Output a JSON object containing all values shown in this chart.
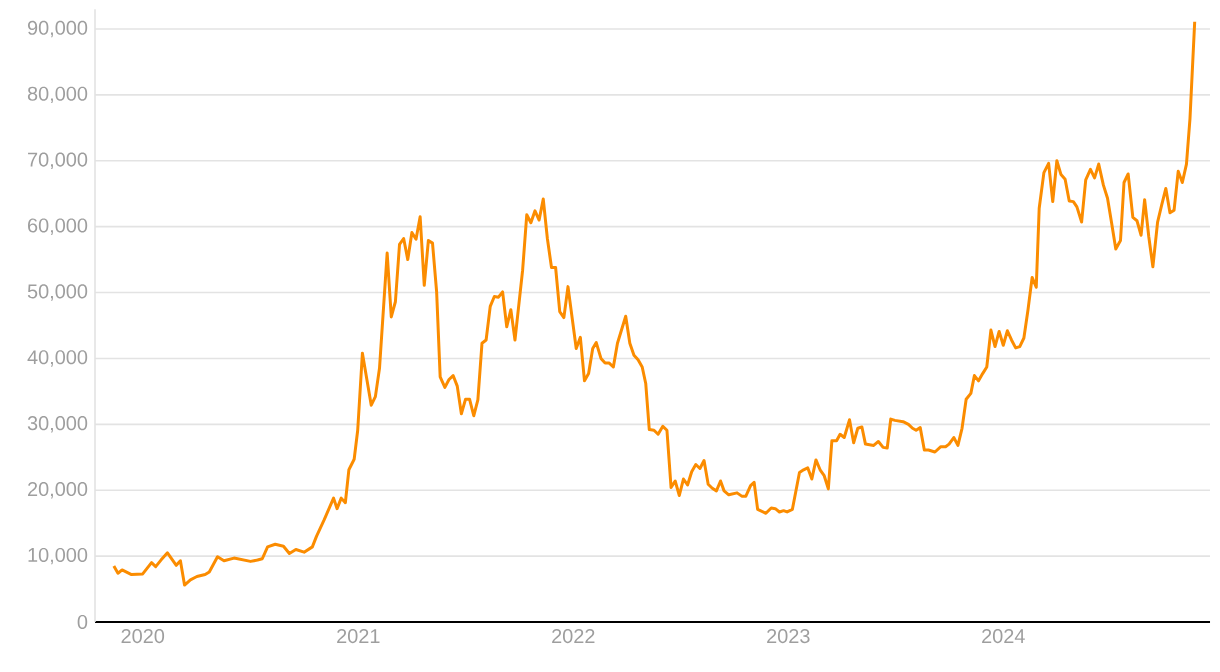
{
  "chart_data": {
    "type": "line",
    "color": "#fb8c00",
    "grid": "y",
    "xlim": [
      "2019-10-12",
      "2024-12-17"
    ],
    "xticks": [
      {
        "value": "2020-01-01",
        "label": "2020"
      },
      {
        "value": "2021-01-01",
        "label": "2021"
      },
      {
        "value": "2022-01-01",
        "label": "2022"
      },
      {
        "value": "2023-01-01",
        "label": "2023"
      },
      {
        "value": "2024-01-01",
        "label": "2024"
      }
    ],
    "ylim": [
      0,
      93000
    ],
    "yticks": [
      0,
      {
        "value": 10000,
        "label": "10,000"
      },
      {
        "value": 20000,
        "label": "20,000"
      },
      {
        "value": 30000,
        "label": "30,000"
      },
      {
        "value": 40000,
        "label": "40,000"
      },
      {
        "value": 50000,
        "label": "50,000"
      },
      {
        "value": 60000,
        "label": "60,000"
      },
      {
        "value": 70000,
        "label": "70,000"
      },
      {
        "value": 80000,
        "label": "80,000"
      },
      {
        "value": 90000,
        "label": "90,000"
      }
    ],
    "x": [
      "2019-11-13",
      "2019-11-20",
      "2019-11-27",
      "2019-12-13",
      "2020-01-01",
      "2020-01-16",
      "2020-01-23",
      "2020-02-01",
      "2020-02-12",
      "2020-02-27",
      "2020-03-05",
      "2020-03-12",
      "2020-03-22",
      "2020-04-02",
      "2020-04-16",
      "2020-04-23",
      "2020-05-07",
      "2020-05-18",
      "2020-06-04",
      "2020-07-02",
      "2020-07-14",
      "2020-07-22",
      "2020-07-31",
      "2020-08-13",
      "2020-08-27",
      "2020-09-06",
      "2020-09-17",
      "2020-10-01",
      "2020-10-15",
      "2020-10-22",
      "2020-11-04",
      "2020-11-20",
      "2020-11-26",
      "2020-12-03",
      "2020-12-10",
      "2020-12-16",
      "2020-12-25",
      "2020-12-31",
      "2021-01-08",
      "2021-01-23",
      "2021-01-30",
      "2021-02-06",
      "2021-02-19",
      "2021-02-26",
      "2021-03-05",
      "2021-03-12",
      "2021-03-19",
      "2021-03-26",
      "2021-04-02",
      "2021-04-09",
      "2021-04-16",
      "2021-04-23",
      "2021-04-30",
      "2021-05-07",
      "2021-05-14",
      "2021-05-20",
      "2021-05-28",
      "2021-06-04",
      "2021-06-11",
      "2021-06-18",
      "2021-06-25",
      "2021-07-02",
      "2021-07-09",
      "2021-07-16",
      "2021-07-23",
      "2021-07-30",
      "2021-08-06",
      "2021-08-13",
      "2021-08-20",
      "2021-08-27",
      "2021-09-03",
      "2021-09-10",
      "2021-09-17",
      "2021-09-24",
      "2021-10-07",
      "2021-10-14",
      "2021-10-21",
      "2021-10-28",
      "2021-11-04",
      "2021-11-11",
      "2021-11-18",
      "2021-11-25",
      "2021-12-02",
      "2021-12-09",
      "2021-12-16",
      "2021-12-23",
      "2022-01-06",
      "2022-01-13",
      "2022-01-20",
      "2022-01-27",
      "2022-02-03",
      "2022-02-09",
      "2022-02-17",
      "2022-02-24",
      "2022-03-03",
      "2022-03-10",
      "2022-03-17",
      "2022-03-31",
      "2022-04-07",
      "2022-04-14",
      "2022-04-21",
      "2022-04-28",
      "2022-05-04",
      "2022-05-10",
      "2022-05-18",
      "2022-05-25",
      "2022-06-02",
      "2022-06-09",
      "2022-06-16",
      "2022-06-23",
      "2022-06-30",
      "2022-07-07",
      "2022-07-14",
      "2022-07-21",
      "2022-07-28",
      "2022-08-04",
      "2022-08-11",
      "2022-08-18",
      "2022-08-25",
      "2022-09-01",
      "2022-09-08",
      "2022-09-14",
      "2022-09-22",
      "2022-10-06",
      "2022-10-14",
      "2022-10-21",
      "2022-10-29",
      "2022-11-04",
      "2022-11-10",
      "2022-11-24",
      "2022-12-03",
      "2022-12-10",
      "2022-12-17",
      "2022-12-24",
      "2022-12-30",
      "2023-01-08",
      "2023-01-20",
      "2023-01-27",
      "2023-02-03",
      "2023-02-10",
      "2023-02-17",
      "2023-02-24",
      "2023-03-03",
      "2023-03-10",
      "2023-03-16",
      "2023-03-24",
      "2023-03-30",
      "2023-04-06",
      "2023-04-15",
      "2023-04-22",
      "2023-04-29",
      "2023-05-06",
      "2023-05-12",
      "2023-05-26",
      "2023-06-03",
      "2023-06-11",
      "2023-06-18",
      "2023-06-24",
      "2023-07-01",
      "2023-07-15",
      "2023-07-24",
      "2023-07-31",
      "2023-08-06",
      "2023-08-13",
      "2023-08-20",
      "2023-08-27",
      "2023-09-07",
      "2023-09-17",
      "2023-09-25",
      "2023-10-01",
      "2023-10-09",
      "2023-10-16",
      "2023-10-23",
      "2023-10-30",
      "2023-11-07",
      "2023-11-13",
      "2023-11-20",
      "2023-11-27",
      "2023-12-04",
      "2023-12-11",
      "2023-12-18",
      "2023-12-25",
      "2024-01-01",
      "2024-01-08",
      "2024-01-15",
      "2024-01-22",
      "2024-01-29",
      "2024-02-05",
      "2024-02-12",
      "2024-02-19",
      "2024-02-26",
      "2024-03-02",
      "2024-03-10",
      "2024-03-18",
      "2024-03-25",
      "2024-04-01",
      "2024-04-08",
      "2024-04-15",
      "2024-04-22",
      "2024-04-29",
      "2024-05-05",
      "2024-05-13",
      "2024-05-20",
      "2024-05-28",
      "2024-06-04",
      "2024-06-11",
      "2024-06-19",
      "2024-06-26",
      "2024-07-03",
      "2024-07-10",
      "2024-07-18",
      "2024-07-24",
      "2024-07-31",
      "2024-08-08",
      "2024-08-15",
      "2024-08-22",
      "2024-08-28",
      "2024-09-04",
      "2024-09-11",
      "2024-09-19",
      "2024-09-26",
      "2024-10-03",
      "2024-10-10",
      "2024-10-17",
      "2024-10-24",
      "2024-10-31",
      "2024-11-07",
      "2024-11-13",
      "2024-11-21"
    ],
    "values": [
      8500,
      7400,
      7900,
      7200,
      7300,
      9000,
      8400,
      9400,
      10500,
      8600,
      9300,
      5600,
      6400,
      6900,
      7200,
      7600,
      9900,
      9300,
      9700,
      9200,
      9400,
      9600,
      11400,
      11800,
      11500,
      10400,
      11000,
      10600,
      11400,
      13000,
      15500,
      18800,
      17200,
      18800,
      18100,
      23100,
      24700,
      29100,
      40800,
      32900,
      34200,
      38500,
      56000,
      46300,
      48600,
      57300,
      58200,
      55000,
      59100,
      58100,
      61500,
      51100,
      57900,
      57500,
      50100,
      37200,
      35600,
      36800,
      37400,
      35800,
      31600,
      33800,
      33800,
      31300,
      33700,
      42300,
      42800,
      47900,
      49400,
      49300,
      50100,
      44800,
      47400,
      42800,
      53400,
      61800,
      60600,
      62400,
      61000,
      64200,
      58200,
      53800,
      53800,
      47100,
      46200,
      50900,
      41500,
      43200,
      36600,
      37700,
      41500,
      42400,
      40000,
      39300,
      39300,
      38700,
      42300,
      46400,
      42300,
      40500,
      39800,
      38700,
      36200,
      29200,
      29100,
      28500,
      29700,
      29100,
      20400,
      21400,
      19200,
      21700,
      20800,
      22800,
      23900,
      23300,
      24500,
      20900,
      20300,
      19900,
      21400,
      19900,
      19300,
      19600,
      19100,
      19100,
      20700,
      21200,
      17100,
      16500,
      17300,
      17200,
      16700,
      16900,
      16700,
      17100,
      22700,
      23100,
      23400,
      21700,
      24600,
      23100,
      22200,
      20200,
      27500,
      27500,
      28500,
      28000,
      30700,
      27200,
      29400,
      29600,
      27000,
      26800,
      27400,
      26500,
      26400,
      30800,
      30600,
      30400,
      30000,
      29400,
      29100,
      29500,
      26100,
      26100,
      25800,
      26600,
      26600,
      27000,
      28000,
      26800,
      29400,
      33800,
      34700,
      37400,
      36600,
      37700,
      38700,
      44300,
      41800,
      44100,
      42000,
      44200,
      42800,
      41600,
      41800,
      43100,
      47400,
      52300,
      50800,
      62800,
      68200,
      69600,
      63800,
      70000,
      67900,
      67200,
      63900,
      63800,
      63000,
      60700,
      67100,
      68700,
      67400,
      69500,
      66300,
      64300,
      60500,
      56600,
      57900,
      66700,
      68000,
      61400,
      60900,
      58700,
      64100,
      58500,
      53900,
      60700,
      63300,
      65800,
      62100,
      62500,
      68400,
      66700,
      69500,
      76400,
      91100
    ]
  }
}
